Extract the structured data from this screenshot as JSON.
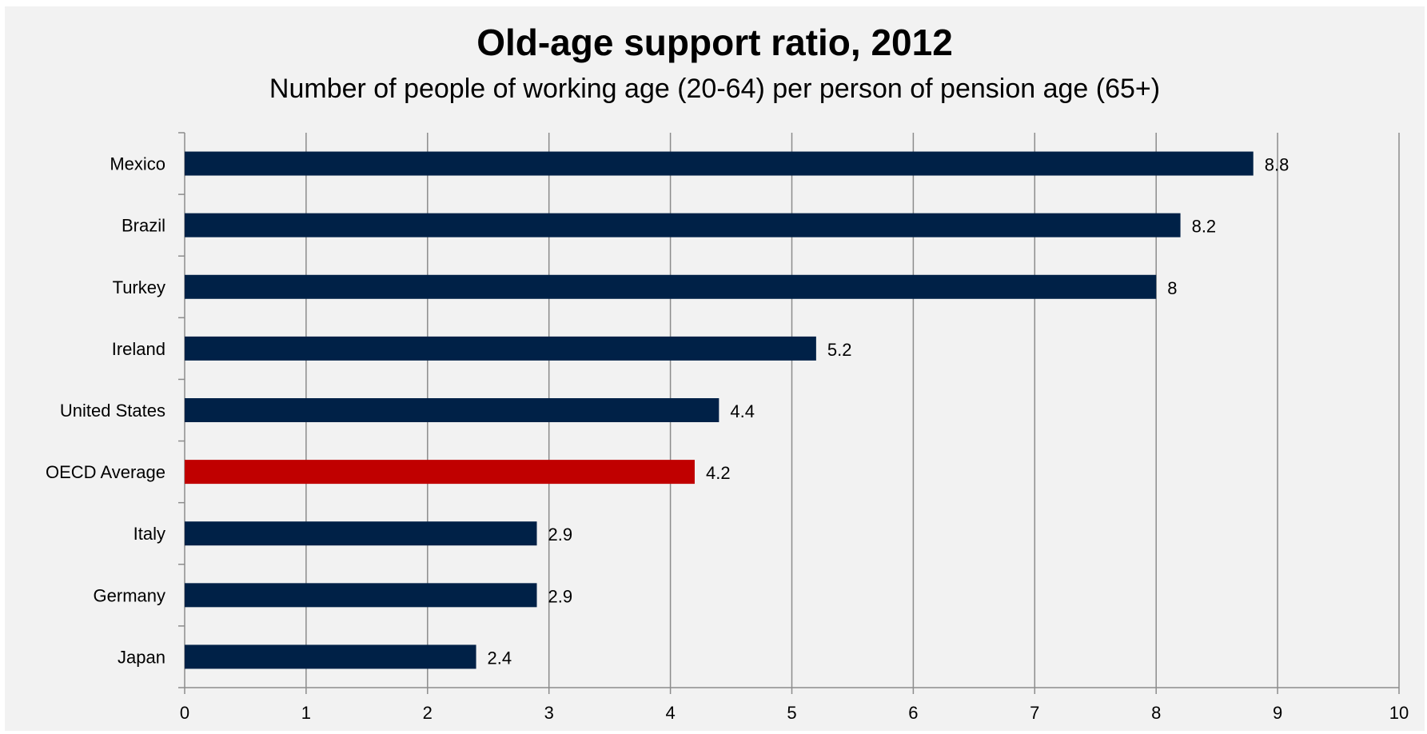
{
  "chart_data": {
    "type": "bar",
    "orientation": "horizontal",
    "title": "Old-age support ratio, 2012",
    "subtitle": "Number of people of working age (20-64) per person of pension age (65+)",
    "xlabel": "",
    "ylabel": "",
    "xlim": [
      0,
      10
    ],
    "x_ticks": [
      "0",
      "1",
      "2",
      "3",
      "4",
      "5",
      "6",
      "7",
      "8",
      "9",
      "10"
    ],
    "grid": "vertical major gridlines",
    "legend": "none",
    "categories": [
      "Mexico",
      "Brazil",
      "Turkey",
      "Ireland",
      "United States",
      "OECD Average",
      "Italy",
      "Germany",
      "Japan"
    ],
    "values": [
      8.8,
      8.2,
      8,
      5.2,
      4.4,
      4.2,
      2.9,
      2.9,
      2.4
    ],
    "data_labels": [
      "8.8",
      "8.2",
      "8",
      "5.2",
      "4.4",
      "4.2",
      "2.9",
      "2.9",
      "2.4"
    ],
    "highlight_category": "OECD Average",
    "colors": {
      "bar": "#002147",
      "highlight": "#c00000",
      "gridline": "#8c8c8c",
      "background": "#f2f2f2"
    }
  }
}
